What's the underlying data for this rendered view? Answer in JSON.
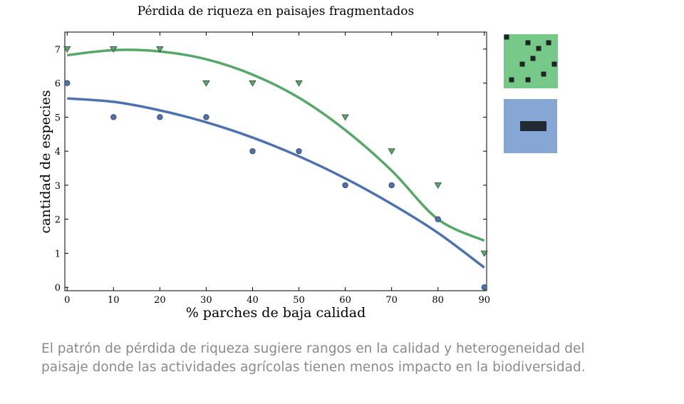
{
  "chart_data": {
    "type": "scatter",
    "title": "Pérdida de riqueza en paisajes fragmentados",
    "xlabel": "% parches de baja calidad",
    "ylabel": "cantidad de especies",
    "xlim": [
      -0.5,
      90.5
    ],
    "ylim": [
      -0.1,
      7.5
    ],
    "xticks": [
      0,
      10,
      20,
      30,
      40,
      50,
      60,
      70,
      80,
      90
    ],
    "yticks": [
      0,
      1,
      2,
      3,
      4,
      5,
      6,
      7
    ],
    "grid": false,
    "series": [
      {
        "color": "#55a868",
        "marker": "triangle-down",
        "x": [
          0,
          10,
          20,
          30,
          40,
          50,
          60,
          70,
          80,
          90
        ],
        "values": [
          7,
          7,
          7,
          6,
          6,
          6,
          5,
          4,
          3,
          1
        ],
        "fit_line": {
          "x": [
            0,
            10,
            20,
            30,
            40,
            50,
            60,
            70,
            80,
            90
          ],
          "values": [
            6.82,
            6.97,
            6.93,
            6.7,
            6.25,
            5.57,
            4.62,
            3.43,
            2.0,
            1.37
          ]
        }
      },
      {
        "color": "#4c72b0",
        "marker": "circle",
        "x": [
          0,
          10,
          20,
          30,
          40,
          50,
          60,
          70,
          80,
          90
        ],
        "values": [
          6,
          5,
          5,
          5,
          4,
          4,
          3,
          3,
          2,
          0
        ],
        "fit_line": {
          "x": [
            0,
            10,
            20,
            30,
            40,
            50,
            60,
            70,
            80,
            90
          ],
          "values": [
            5.55,
            5.45,
            5.2,
            4.85,
            4.4,
            3.85,
            3.2,
            2.45,
            1.6,
            0.58
          ]
        }
      }
    ]
  },
  "legend_icons": [
    {
      "name": "fragmented-landscape-icon",
      "color": "#77c98a",
      "patch_color": "#222222"
    },
    {
      "name": "single-block-landscape-icon",
      "color": "#86a6d6",
      "patch_color": "#222a33"
    }
  ],
  "caption": {
    "line1": "El patrón de pérdida de riqueza sugiere rangos en la calidad y heterogeneidad del",
    "line2": "paisaje donde las actividades agrícolas tienen menos impacto en la biodiversidad."
  }
}
